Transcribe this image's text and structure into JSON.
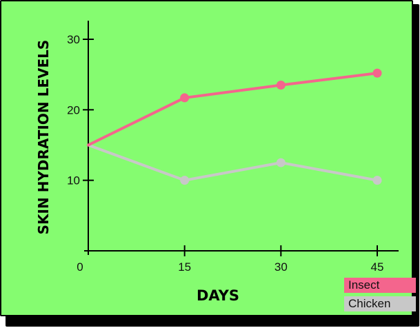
{
  "chart_data": {
    "type": "line",
    "title": "",
    "xlabel": "DAYS",
    "ylabel": "SKIN HYDRATION LEVELS",
    "x": [
      0,
      15,
      30,
      45
    ],
    "x_ticks": [
      "0",
      "15",
      "30",
      "45"
    ],
    "y_ticks": [
      "10",
      "20",
      "30"
    ],
    "xlim": [
      0,
      47
    ],
    "ylim": [
      0,
      30
    ],
    "legend_placement": "bottom-right",
    "grid": false,
    "series": [
      {
        "name": "Insect",
        "color": "#f4658d",
        "values": [
          15,
          21.7,
          23.5,
          25.2
        ]
      },
      {
        "name": "Chicken",
        "color": "#c8c8c8",
        "values": [
          15,
          10,
          12.5,
          10
        ]
      }
    ]
  },
  "colors": {
    "background": "#85fc70",
    "shadow": "#000000"
  }
}
